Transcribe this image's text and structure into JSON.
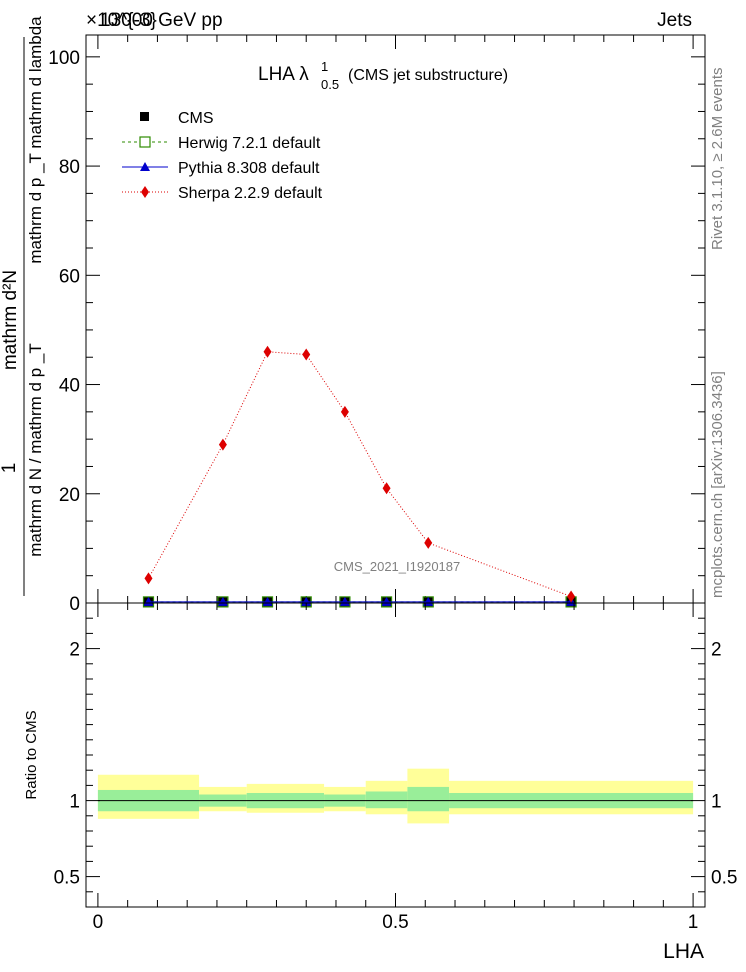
{
  "header": {
    "energy": "13000 GeV pp",
    "process": "Jets",
    "exponent_label": "×10^{-3}"
  },
  "side_labels": {
    "rivet": "Rivet 3.1.10, ≥ 2.6M events",
    "mcplots": "mcplots.cern.ch [arXiv:1306.3436]"
  },
  "chart_data": [
    {
      "type": "line",
      "title": "LHA λ^1_0.5 (CMS jet substructure)",
      "title_main": "LHA λ",
      "title_sup": "1",
      "title_sub": "0.5",
      "title_rest": "(CMS jet substructure)",
      "watermark": "CMS_2021_I1920187",
      "ylabel_numerator": "1",
      "ylabel_denominator": "mathrm d N / mathrm d p _T",
      "ylabel_top": "mathrm d²N",
      "ylabel_top_den": "mathrm d p _T mathrm d lambda",
      "xlim": [
        -0.02,
        1.02
      ],
      "ylim": [
        0,
        0.104
      ],
      "y_scale_factor": 0.001,
      "y_ticks": [
        0,
        20,
        40,
        60,
        80,
        100
      ],
      "y_tick_labels": [
        "0",
        "20",
        "40",
        "60",
        "80",
        "100"
      ],
      "x": [
        0.085,
        0.21,
        0.285,
        0.35,
        0.415,
        0.485,
        0.555,
        0.795
      ],
      "series": [
        {
          "name": "CMS",
          "color": "#000000",
          "marker": "square",
          "line": "none",
          "values": [
            0.0002,
            0.0002,
            0.0002,
            0.0002,
            0.0002,
            0.0002,
            0.0002,
            0.0002
          ]
        },
        {
          "name": "Herwig 7.2.1 default",
          "color": "#2e8b00",
          "marker": "open-square",
          "line": "dashed",
          "values": [
            0.0002,
            0.0002,
            0.0002,
            0.0002,
            0.0002,
            0.0002,
            0.0002,
            0.0002
          ]
        },
        {
          "name": "Pythia 8.308 default",
          "color": "#0000cc",
          "marker": "triangle",
          "line": "solid",
          "values": [
            0.0002,
            0.0002,
            0.0002,
            0.0002,
            0.0002,
            0.0002,
            0.0002,
            0.0002
          ]
        },
        {
          "name": "Sherpa 2.2.9 default",
          "color": "#dd0000",
          "marker": "diamond",
          "line": "dotted",
          "values": [
            0.0045,
            0.029,
            0.046,
            0.0455,
            0.035,
            0.021,
            0.011,
            0.0012
          ]
        }
      ],
      "legend_placement": "top-left",
      "grid": false
    },
    {
      "type": "area",
      "ylabel": "Ratio to CMS",
      "xlabel": "LHA",
      "xlim": [
        -0.02,
        1.02
      ],
      "ylim": [
        0.3,
        2.3
      ],
      "x_ticks": [
        0,
        0.5,
        1
      ],
      "x_tick_labels": [
        "0",
        "0.5",
        "1"
      ],
      "y_ticks": [
        0.5,
        1,
        2
      ],
      "y_tick_labels": [
        "0.5",
        "1",
        "2"
      ],
      "bins": [
        {
          "lo": 0.0,
          "hi": 0.17,
          "inner": [
            0.93,
            1.07
          ],
          "outer": [
            0.88,
            1.17
          ]
        },
        {
          "lo": 0.17,
          "hi": 0.25,
          "inner": [
            0.96,
            1.04
          ],
          "outer": [
            0.93,
            1.09
          ]
        },
        {
          "lo": 0.25,
          "hi": 0.38,
          "inner": [
            0.95,
            1.05
          ],
          "outer": [
            0.92,
            1.11
          ]
        },
        {
          "lo": 0.38,
          "hi": 0.45,
          "inner": [
            0.96,
            1.04
          ],
          "outer": [
            0.93,
            1.09
          ]
        },
        {
          "lo": 0.45,
          "hi": 0.52,
          "inner": [
            0.95,
            1.06
          ],
          "outer": [
            0.91,
            1.13
          ]
        },
        {
          "lo": 0.52,
          "hi": 0.59,
          "inner": [
            0.93,
            1.09
          ],
          "outer": [
            0.85,
            1.21
          ]
        },
        {
          "lo": 0.59,
          "hi": 1.0,
          "inner": [
            0.95,
            1.05
          ],
          "outer": [
            0.91,
            1.13
          ]
        }
      ],
      "band_colors": {
        "inner": "#99ee99",
        "outer": "#ffff99"
      },
      "reference": 1
    }
  ]
}
